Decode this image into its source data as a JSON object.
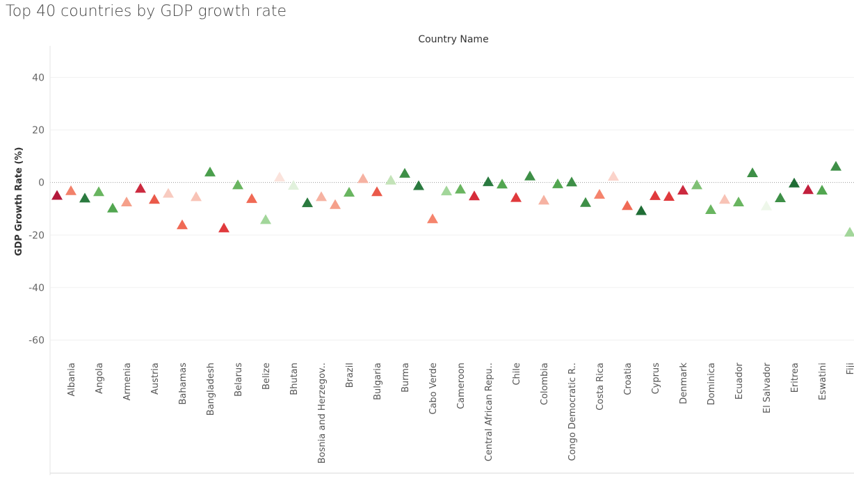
{
  "page": {
    "title": "Top 40 countries by GDP growth rate"
  },
  "chart_data": {
    "type": "scatter",
    "marker": "triangle",
    "title": "Top 40 countries by GDP growth rate",
    "column_header": "Country Name",
    "ylabel": "GDP Growth Rate (%)",
    "ylim": [
      -67,
      52
    ],
    "yticks": [
      40,
      20,
      0,
      -20,
      -40,
      -60
    ],
    "grid": true,
    "zero_reference_line": true,
    "labeled_categories": [
      "Albania",
      "Angola",
      "Armenia",
      "Austria",
      "Bahamas",
      "Bangladesh",
      "Belarus",
      "Belize",
      "Bhutan",
      "Bosnia and Herzegov..",
      "Brazil",
      "Bulgaria",
      "Burma",
      "Cabo Verde",
      "Cameroon",
      "Central African Repu..",
      "Chile",
      "Colombia",
      "Congo Democratic R..",
      "Costa Rica",
      "Croatia",
      "Cyprus",
      "Denmark",
      "Dominica",
      "Ecuador",
      "El Salvador",
      "Eritrea",
      "Eswatini",
      "Fiji"
    ],
    "points": [
      {
        "value": -5.0,
        "color": "#b3183a"
      },
      {
        "value": -3.2,
        "color": "#f2816a"
      },
      {
        "value": -6.0,
        "color": "#2a7a3f"
      },
      {
        "value": -3.6,
        "color": "#69b560"
      },
      {
        "value": -9.8,
        "color": "#52a650"
      },
      {
        "value": -7.5,
        "color": "#f5a08a"
      },
      {
        "value": -2.3,
        "color": "#cc2a3f"
      },
      {
        "value": -6.5,
        "color": "#ea5a4a"
      },
      {
        "value": -4.2,
        "color": "#f8cbc0"
      },
      {
        "value": -16.2,
        "color": "#f06a55"
      },
      {
        "value": -5.5,
        "color": "#f8c3b6"
      },
      {
        "value": 3.9,
        "color": "#4a9e4c"
      },
      {
        "value": -17.4,
        "color": "#e0393c"
      },
      {
        "value": -1.0,
        "color": "#69b560"
      },
      {
        "value": -6.2,
        "color": "#f06a55"
      },
      {
        "value": -14.2,
        "color": "#a2d69a"
      },
      {
        "value": 2.0,
        "color": "#fbe3dc"
      },
      {
        "value": -1.2,
        "color": "#e1f1dc"
      },
      {
        "value": -7.8,
        "color": "#2a7a3f"
      },
      {
        "value": -5.5,
        "color": "#f6b2a2"
      },
      {
        "value": -8.5,
        "color": "#f5a08a"
      },
      {
        "value": -3.8,
        "color": "#69b560"
      },
      {
        "value": 1.4,
        "color": "#f6b2a2"
      },
      {
        "value": -3.6,
        "color": "#ea5a4a"
      },
      {
        "value": 0.8,
        "color": "#c3e3b8"
      },
      {
        "value": 3.4,
        "color": "#3e8f47"
      },
      {
        "value": -1.3,
        "color": "#2a7a3f"
      },
      {
        "value": -13.9,
        "color": "#f5846d"
      },
      {
        "value": -3.3,
        "color": "#a2d69a"
      },
      {
        "value": -2.6,
        "color": "#69b560"
      },
      {
        "value": -5.2,
        "color": "#d62c3a"
      },
      {
        "value": 0.2,
        "color": "#2a7a3f"
      },
      {
        "value": -0.7,
        "color": "#52a650"
      },
      {
        "value": -5.8,
        "color": "#e0393c"
      },
      {
        "value": 2.4,
        "color": "#3e8f47"
      },
      {
        "value": -6.8,
        "color": "#f6b2a2"
      },
      {
        "value": -0.6,
        "color": "#52a650"
      },
      {
        "value": 0.1,
        "color": "#3e8f47"
      },
      {
        "value": -7.7,
        "color": "#3e8f47"
      },
      {
        "value": -4.6,
        "color": "#f5846d"
      },
      {
        "value": 2.3,
        "color": "#fbd3ca"
      },
      {
        "value": -8.9,
        "color": "#f06a55"
      },
      {
        "value": -10.8,
        "color": "#1f6d35"
      },
      {
        "value": -5.1,
        "color": "#e0393c"
      },
      {
        "value": -5.4,
        "color": "#e0393c"
      },
      {
        "value": -3.0,
        "color": "#cc2a3f"
      },
      {
        "value": -1.0,
        "color": "#7fc074"
      },
      {
        "value": -10.4,
        "color": "#69b560"
      },
      {
        "value": -6.5,
        "color": "#f8c3b6"
      },
      {
        "value": -7.5,
        "color": "#69b560"
      },
      {
        "value": 3.6,
        "color": "#3e8f47"
      },
      {
        "value": -9.0,
        "color": "#eef7ea"
      },
      {
        "value": -5.9,
        "color": "#3e8f47"
      },
      {
        "value": -0.3,
        "color": "#1f6d35"
      },
      {
        "value": -2.8,
        "color": "#c21f3c"
      },
      {
        "value": -3.0,
        "color": "#52a650"
      },
      {
        "value": 6.1,
        "color": "#3e8f47"
      },
      {
        "value": -19.0,
        "color": "#a2d69a"
      }
    ]
  }
}
